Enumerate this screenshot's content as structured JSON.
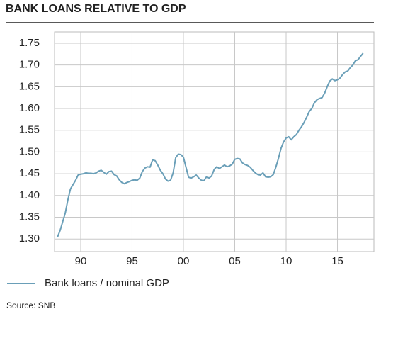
{
  "chart_data": {
    "type": "line",
    "title": "BANK LOANS RELATIVE TO GDP",
    "source": "Source: SNB",
    "x": [
      1987.75,
      1988,
      1988.25,
      1988.5,
      1988.75,
      1989,
      1989.25,
      1989.5,
      1989.75,
      1990,
      1990.25,
      1990.5,
      1990.75,
      1991,
      1991.25,
      1991.5,
      1991.75,
      1992,
      1992.25,
      1992.5,
      1992.75,
      1993,
      1993.25,
      1993.5,
      1993.75,
      1994,
      1994.25,
      1994.5,
      1994.75,
      1995,
      1995.25,
      1995.5,
      1995.75,
      1996,
      1996.25,
      1996.5,
      1996.75,
      1997,
      1997.25,
      1997.5,
      1997.75,
      1998,
      1998.25,
      1998.5,
      1998.75,
      1999,
      1999.25,
      1999.5,
      1999.75,
      2000,
      2000.25,
      2000.5,
      2000.75,
      2001,
      2001.25,
      2001.5,
      2001.75,
      2002,
      2002.25,
      2002.5,
      2002.75,
      2003,
      2003.25,
      2003.5,
      2003.75,
      2004,
      2004.25,
      2004.5,
      2004.75,
      2005,
      2005.25,
      2005.5,
      2005.75,
      2006,
      2006.25,
      2006.5,
      2006.75,
      2007,
      2007.25,
      2007.5,
      2007.75,
      2008,
      2008.25,
      2008.5,
      2008.75,
      2009,
      2009.25,
      2009.5,
      2009.75,
      2010,
      2010.25,
      2010.5,
      2010.75,
      2011,
      2011.25,
      2011.5,
      2011.75,
      2012,
      2012.25,
      2012.5,
      2012.75,
      2013,
      2013.25,
      2013.5,
      2013.75,
      2014,
      2014.25,
      2014.5,
      2014.75,
      2015,
      2015.25,
      2015.5,
      2015.75,
      2016,
      2016.25,
      2016.5,
      2016.75,
      2017,
      2017.25,
      2017.5
    ],
    "series": [
      {
        "name": "Bank loans / nominal GDP",
        "color": "#6a9fb8",
        "values": [
          1.305,
          1.32,
          1.34,
          1.36,
          1.39,
          1.415,
          1.425,
          1.435,
          1.447,
          1.449,
          1.45,
          1.452,
          1.451,
          1.451,
          1.45,
          1.452,
          1.456,
          1.458,
          1.453,
          1.449,
          1.455,
          1.456,
          1.448,
          1.445,
          1.436,
          1.43,
          1.427,
          1.43,
          1.432,
          1.435,
          1.436,
          1.435,
          1.44,
          1.455,
          1.463,
          1.466,
          1.465,
          1.482,
          1.48,
          1.47,
          1.458,
          1.45,
          1.438,
          1.433,
          1.435,
          1.452,
          1.487,
          1.495,
          1.494,
          1.488,
          1.465,
          1.442,
          1.44,
          1.443,
          1.447,
          1.44,
          1.435,
          1.434,
          1.443,
          1.44,
          1.445,
          1.46,
          1.466,
          1.462,
          1.466,
          1.47,
          1.466,
          1.468,
          1.472,
          1.483,
          1.485,
          1.484,
          1.475,
          1.471,
          1.469,
          1.465,
          1.458,
          1.452,
          1.448,
          1.447,
          1.452,
          1.443,
          1.442,
          1.443,
          1.448,
          1.465,
          1.485,
          1.508,
          1.523,
          1.532,
          1.535,
          1.528,
          1.535,
          1.54,
          1.55,
          1.558,
          1.568,
          1.58,
          1.593,
          1.6,
          1.613,
          1.62,
          1.623,
          1.625,
          1.635,
          1.65,
          1.663,
          1.668,
          1.664,
          1.666,
          1.67,
          1.678,
          1.684,
          1.686,
          1.694,
          1.7,
          1.71,
          1.712,
          1.72,
          1.727
        ]
      }
    ],
    "xlim": [
      1987.45,
      2018.55
    ],
    "xticks": [
      {
        "value": 1990,
        "label": "90"
      },
      {
        "value": 1995,
        "label": "95"
      },
      {
        "value": 2000,
        "label": "00"
      },
      {
        "value": 2005,
        "label": "05"
      },
      {
        "value": 2010,
        "label": "10"
      },
      {
        "value": 2015,
        "label": "15"
      }
    ],
    "ylim": [
      1.271,
      1.776
    ],
    "yticks": [
      {
        "value": 1.3,
        "label": "1.30"
      },
      {
        "value": 1.35,
        "label": "1.35"
      },
      {
        "value": 1.4,
        "label": "1.40"
      },
      {
        "value": 1.45,
        "label": "1.45"
      },
      {
        "value": 1.5,
        "label": "1.50"
      },
      {
        "value": 1.55,
        "label": "1.55"
      },
      {
        "value": 1.6,
        "label": "1.60"
      },
      {
        "value": 1.65,
        "label": "1.65"
      },
      {
        "value": 1.7,
        "label": "1.70"
      },
      {
        "value": 1.75,
        "label": "1.75"
      }
    ],
    "grid": true
  }
}
